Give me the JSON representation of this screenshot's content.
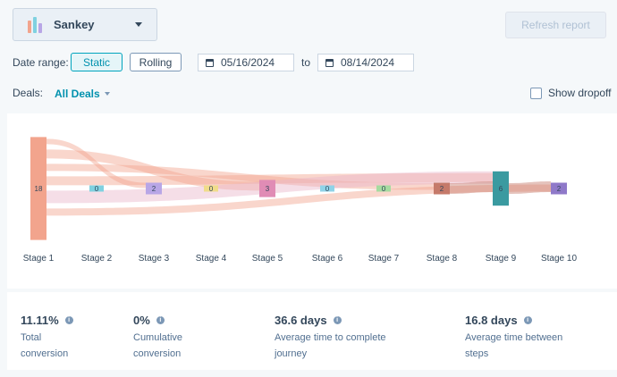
{
  "chart_selector": {
    "label": "Sankey",
    "icon": "sankey-chart-icon"
  },
  "refresh_label": "Refresh report",
  "date_range": {
    "label": "Date range:",
    "static_label": "Static",
    "rolling_label": "Rolling",
    "selected": "Static",
    "start": "05/16/2024",
    "to_label": "to",
    "end": "08/14/2024"
  },
  "deals": {
    "label": "Deals:",
    "value": "All Deals"
  },
  "show_dropoff": {
    "label": "Show dropoff",
    "checked": false
  },
  "chart_data": {
    "type": "sankey",
    "nodes": [
      {
        "label": "Stage 1",
        "value": 18,
        "color": "#f2a48d"
      },
      {
        "label": "Stage 2",
        "value": 0,
        "color": "#7fd1e0"
      },
      {
        "label": "Stage 3",
        "value": 2,
        "color": "#b8a6e6"
      },
      {
        "label": "Stage 4",
        "value": 0,
        "color": "#f0dc8a"
      },
      {
        "label": "Stage 5",
        "value": 3,
        "color": "#e08cb5"
      },
      {
        "label": "Stage 6",
        "value": 0,
        "color": "#8fd3e8"
      },
      {
        "label": "Stage 7",
        "value": 0,
        "color": "#a6dba0"
      },
      {
        "label": "Stage 8",
        "value": 2,
        "color": "#c57a6a"
      },
      {
        "label": "Stage 9",
        "value": 6,
        "color": "#3a9aa0"
      },
      {
        "label": "Stage 10",
        "value": 2,
        "color": "#8f79c9"
      }
    ]
  },
  "metrics": [
    {
      "value": "11.11%",
      "label_line1": "Total",
      "label_line2": "conversion"
    },
    {
      "value": "0%",
      "label_line1": "Cumulative",
      "label_line2": "conversion"
    },
    {
      "value": "36.6 days",
      "label_line1": "Average time to complete",
      "label_line2": "journey"
    },
    {
      "value": "16.8 days",
      "label_line1": "Average time between",
      "label_line2": "steps"
    }
  ]
}
